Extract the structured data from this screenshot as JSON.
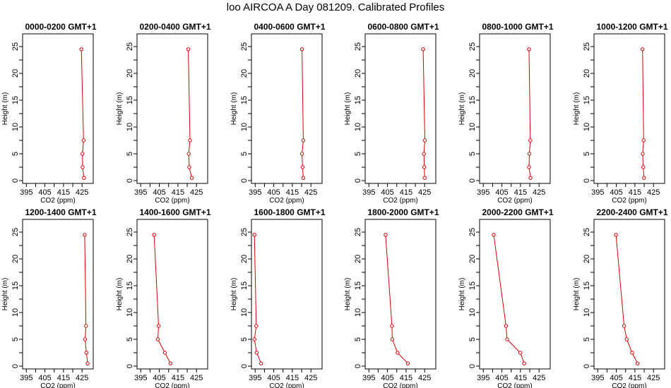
{
  "figure": {
    "title": "loo AIRCOA A  Day 081209. Calibrated Profiles",
    "series_color": "#d40000"
  },
  "chart_data": [
    {
      "type": "line",
      "title": "0000-0200 GMT+1",
      "xlabel": "CO2 (ppm)",
      "ylabel": "Height (m)",
      "xlim": [
        393,
        431
      ],
      "ylim": [
        0,
        25
      ],
      "xticks": [
        395,
        405,
        415,
        425
      ],
      "yticks": [
        0,
        5,
        10,
        15,
        20,
        25
      ],
      "grid": false,
      "series": [
        {
          "values": [
            {
              "x": 426,
              "y": 0.5
            },
            {
              "x": 425.3,
              "y": 2.5
            },
            {
              "x": 425.2,
              "y": 5
            },
            {
              "x": 425.8,
              "y": 7.5
            },
            {
              "x": 424.6,
              "y": 24.5
            }
          ]
        }
      ]
    },
    {
      "type": "line",
      "title": "0200-0400 GMT+1",
      "xlabel": "CO2 (ppm)",
      "ylabel": "Height (m)",
      "xlim": [
        393,
        431
      ],
      "ylim": [
        0,
        25
      ],
      "xticks": [
        395,
        405,
        415,
        425
      ],
      "yticks": [
        0,
        5,
        10,
        15,
        20,
        25
      ],
      "grid": false,
      "series": [
        {
          "values": [
            {
              "x": 422.5,
              "y": 0.5
            },
            {
              "x": 421.1,
              "y": 2.5
            },
            {
              "x": 420.8,
              "y": 5
            },
            {
              "x": 421.5,
              "y": 7.5
            },
            {
              "x": 420.6,
              "y": 24.5
            }
          ]
        }
      ]
    },
    {
      "type": "line",
      "title": "0400-0600 GMT+1",
      "xlabel": "CO2 (ppm)",
      "ylabel": "Height (m)",
      "xlim": [
        393,
        431
      ],
      "ylim": [
        0,
        25
      ],
      "xticks": [
        395,
        405,
        415,
        425
      ],
      "yticks": [
        0,
        5,
        10,
        15,
        20,
        25
      ],
      "grid": false,
      "series": [
        {
          "values": [
            {
              "x": 420.9,
              "y": 0.5
            },
            {
              "x": 420.5,
              "y": 2.5
            },
            {
              "x": 420.2,
              "y": 5
            },
            {
              "x": 420.9,
              "y": 7.5
            },
            {
              "x": 420.2,
              "y": 24.5
            }
          ]
        }
      ]
    },
    {
      "type": "line",
      "title": "0600-0800 GMT+1",
      "xlabel": "CO2 (ppm)",
      "ylabel": "Height (m)",
      "xlim": [
        393,
        431
      ],
      "ylim": [
        0,
        25
      ],
      "xticks": [
        395,
        405,
        415,
        425
      ],
      "yticks": [
        0,
        5,
        10,
        15,
        20,
        25
      ],
      "grid": false,
      "series": [
        {
          "values": [
            {
              "x": 425,
              "y": 0.5
            },
            {
              "x": 424.8,
              "y": 2.5
            },
            {
              "x": 424.6,
              "y": 5
            },
            {
              "x": 425.1,
              "y": 7.5
            },
            {
              "x": 424.2,
              "y": 24.5
            }
          ]
        }
      ]
    },
    {
      "type": "line",
      "title": "0800-1000 GMT+1",
      "xlabel": "CO2 (ppm)",
      "ylabel": "Height (m)",
      "xlim": [
        393,
        431
      ],
      "ylim": [
        0,
        25
      ],
      "xticks": [
        395,
        405,
        415,
        425
      ],
      "yticks": [
        0,
        5,
        10,
        15,
        20,
        25
      ],
      "grid": false,
      "series": [
        {
          "values": [
            {
              "x": 420.4,
              "y": 0.5
            },
            {
              "x": 419.6,
              "y": 2.5
            },
            {
              "x": 419.8,
              "y": 5
            },
            {
              "x": 420.3,
              "y": 7.5
            },
            {
              "x": 419.6,
              "y": 24.5
            }
          ]
        }
      ]
    },
    {
      "type": "line",
      "title": "1000-1200 GMT+1",
      "xlabel": "CO2 (ppm)",
      "ylabel": "Height (m)",
      "xlim": [
        393,
        431
      ],
      "ylim": [
        0,
        25
      ],
      "xticks": [
        395,
        405,
        415,
        425
      ],
      "yticks": [
        0,
        5,
        10,
        15,
        20,
        25
      ],
      "grid": false,
      "series": [
        {
          "values": [
            {
              "x": 419.9,
              "y": 0.5
            },
            {
              "x": 419.5,
              "y": 2.5
            },
            {
              "x": 419.2,
              "y": 5
            },
            {
              "x": 419.7,
              "y": 7.5
            },
            {
              "x": 419.1,
              "y": 24.5
            }
          ]
        }
      ]
    },
    {
      "type": "line",
      "title": "1200-1400 GMT+1",
      "xlabel": "CO2 (ppm)",
      "ylabel": "Height (m)",
      "xlim": [
        393,
        431
      ],
      "ylim": [
        0,
        25
      ],
      "xticks": [
        395,
        405,
        415,
        425
      ],
      "yticks": [
        0,
        5,
        10,
        15,
        20,
        25
      ],
      "grid": false,
      "series": [
        {
          "values": [
            {
              "x": 428,
              "y": 0.5
            },
            {
              "x": 427.3,
              "y": 2.5
            },
            {
              "x": 426.6,
              "y": 5
            },
            {
              "x": 427.1,
              "y": 7.5
            },
            {
              "x": 426.4,
              "y": 24.5
            }
          ]
        }
      ]
    },
    {
      "type": "line",
      "title": "1400-1600 GMT+1",
      "xlabel": "CO2 (ppm)",
      "ylabel": "Height (m)",
      "xlim": [
        393,
        431
      ],
      "ylim": [
        0,
        25
      ],
      "xticks": [
        395,
        405,
        415,
        425
      ],
      "yticks": [
        0,
        5,
        10,
        15,
        20,
        25
      ],
      "grid": false,
      "series": [
        {
          "values": [
            {
              "x": 411,
              "y": 0.5
            },
            {
              "x": 408,
              "y": 2.5
            },
            {
              "x": 404.2,
              "y": 5
            },
            {
              "x": 404.6,
              "y": 7.5
            },
            {
              "x": 402.2,
              "y": 24.5
            }
          ]
        }
      ]
    },
    {
      "type": "line",
      "title": "1600-1800 GMT+1",
      "xlabel": "CO2 (ppm)",
      "ylabel": "Height (m)",
      "xlim": [
        393,
        431
      ],
      "ylim": [
        0,
        25
      ],
      "xticks": [
        395,
        405,
        415,
        425
      ],
      "yticks": [
        0,
        5,
        10,
        15,
        20,
        25
      ],
      "grid": false,
      "series": [
        {
          "values": [
            {
              "x": 398.2,
              "y": 0.5
            },
            {
              "x": 395.8,
              "y": 2.5
            },
            {
              "x": 394.6,
              "y": 5
            },
            {
              "x": 395.6,
              "y": 7.5
            },
            {
              "x": 394.6,
              "y": 24.5
            }
          ]
        }
      ]
    },
    {
      "type": "line",
      "title": "1800-2000 GMT+1",
      "xlabel": "CO2 (ppm)",
      "ylabel": "Height (m)",
      "xlim": [
        393,
        431
      ],
      "ylim": [
        0,
        25
      ],
      "xticks": [
        395,
        405,
        415,
        425
      ],
      "yticks": [
        0,
        5,
        10,
        15,
        20,
        25
      ],
      "grid": false,
      "series": [
        {
          "values": [
            {
              "x": 416,
              "y": 0.5
            },
            {
              "x": 410.4,
              "y": 2.5
            },
            {
              "x": 407.6,
              "y": 5
            },
            {
              "x": 407.4,
              "y": 7.5
            },
            {
              "x": 404,
              "y": 24.5
            }
          ]
        }
      ]
    },
    {
      "type": "line",
      "title": "2000-2200 GMT+1",
      "xlabel": "CO2 (ppm)",
      "ylabel": "Height (m)",
      "xlim": [
        393,
        431
      ],
      "ylim": [
        0,
        25
      ],
      "xticks": [
        395,
        405,
        415,
        425
      ],
      "yticks": [
        0,
        5,
        10,
        15,
        20,
        25
      ],
      "grid": false,
      "series": [
        {
          "values": [
            {
              "x": 417,
              "y": 0.5
            },
            {
              "x": 414.9,
              "y": 2.5
            },
            {
              "x": 407.8,
              "y": 5
            },
            {
              "x": 407.2,
              "y": 7.5
            },
            {
              "x": 400.6,
              "y": 24.5
            }
          ]
        }
      ]
    },
    {
      "type": "line",
      "title": "2200-2400 GMT+1",
      "xlabel": "CO2 (ppm)",
      "ylabel": "Height (m)",
      "xlim": [
        393,
        431
      ],
      "ylim": [
        0,
        25
      ],
      "xticks": [
        395,
        405,
        415,
        425
      ],
      "yticks": [
        0,
        5,
        10,
        15,
        20,
        25
      ],
      "grid": false,
      "series": [
        {
          "values": [
            {
              "x": 416.4,
              "y": 0.5
            },
            {
              "x": 413.5,
              "y": 2.5
            },
            {
              "x": 410.6,
              "y": 5
            },
            {
              "x": 409.2,
              "y": 7.5
            },
            {
              "x": 404.8,
              "y": 24.5
            }
          ]
        }
      ]
    }
  ]
}
